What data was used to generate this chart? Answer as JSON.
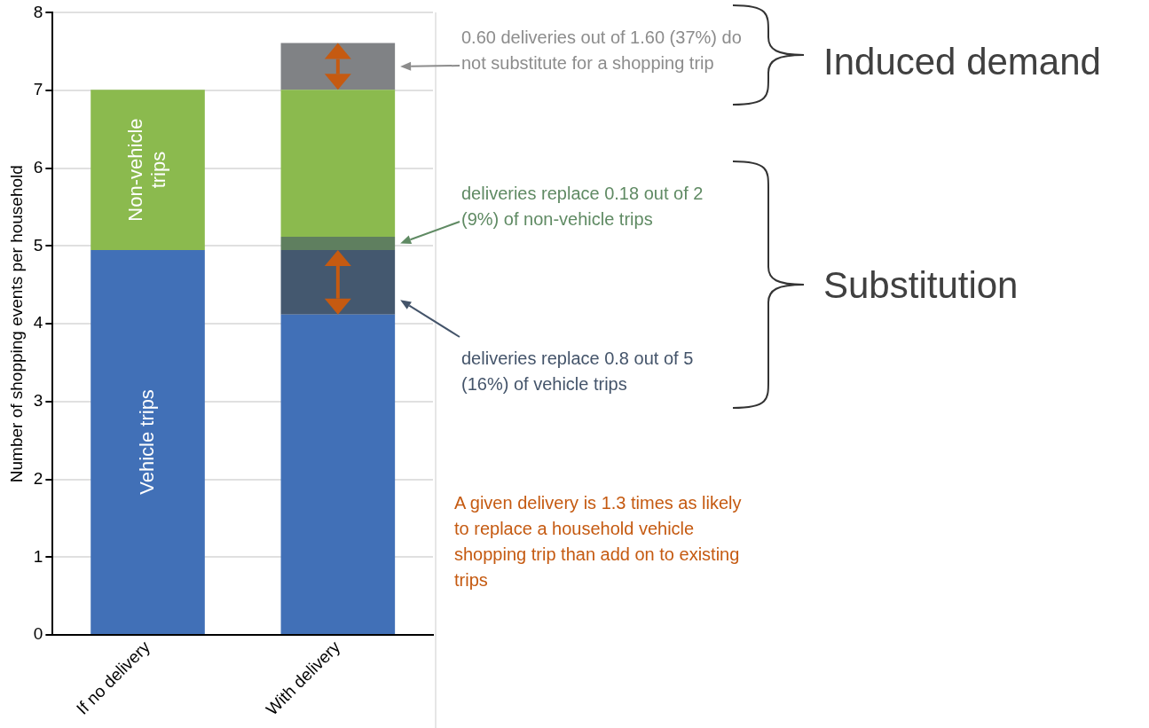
{
  "chart_data": {
    "type": "bar",
    "stacked": true,
    "ylabel": "Number of shopping events per household",
    "categories": [
      "If no delivery",
      "With delivery"
    ],
    "series": [
      {
        "name": "Vehicle trips",
        "color": "#4170b7",
        "values": [
          4.95,
          4.12
        ]
      },
      {
        "color": "#44586f",
        "values": [
          0,
          0.83
        ]
      },
      {
        "color": "#5f7f5f",
        "values": [
          0,
          0.17
        ]
      },
      {
        "name": "Non-vehicle trips",
        "color": "#8bba4e",
        "values": [
          2.06,
          1.89
        ]
      },
      {
        "color": "#808285",
        "values": [
          0,
          0.6
        ]
      }
    ],
    "ylim": [
      0,
      8
    ],
    "yticks": [
      0,
      1,
      2,
      3,
      4,
      5,
      6,
      7,
      8
    ],
    "grid": "y",
    "legend": false,
    "annotations": [
      "0.60 deliveries out of 1.60 (37%) do not substitute for a shopping trip",
      "deliveries replace 0.18 out of 2 (9%) of non-vehicle trips",
      "deliveries replace 0.8 out of 5 (16%) of vehicle trips",
      "A given delivery is 1.3 times as likely to replace a household vehicle shopping trip than add on to existing trips",
      "Induced demand",
      "Substitution"
    ]
  }
}
